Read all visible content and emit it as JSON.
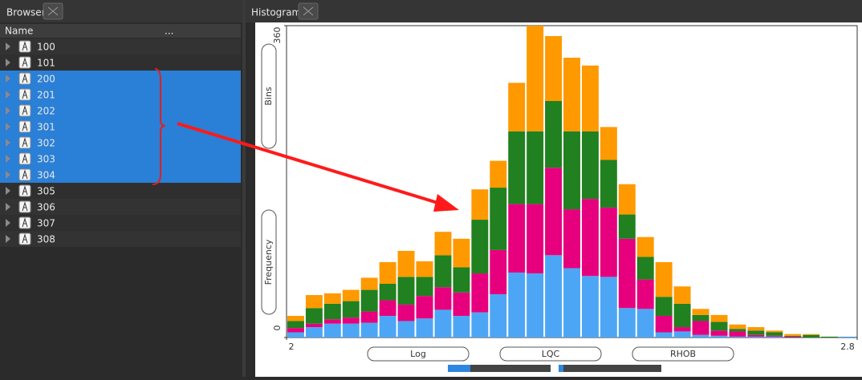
{
  "browser": {
    "title": "Browser",
    "column_headers": [
      "Name",
      "..."
    ],
    "items": [
      {
        "label": "100",
        "selected": false
      },
      {
        "label": "101",
        "selected": false
      },
      {
        "label": "200",
        "selected": true
      },
      {
        "label": "201",
        "selected": true
      },
      {
        "label": "202",
        "selected": true
      },
      {
        "label": "301",
        "selected": true
      },
      {
        "label": "302",
        "selected": true
      },
      {
        "label": "303",
        "selected": true
      },
      {
        "label": "304",
        "selected": true
      },
      {
        "label": "305",
        "selected": false
      },
      {
        "label": "306",
        "selected": false
      },
      {
        "label": "307",
        "selected": false
      },
      {
        "label": "308",
        "selected": false
      }
    ]
  },
  "histogram_panel": {
    "title": "Histogram",
    "y_axis_buttons": [
      "Bins",
      "Frequency"
    ],
    "x_axis_buttons": [
      "Log",
      "LQC",
      "RHOB"
    ]
  },
  "chart_data": {
    "type": "histogram",
    "stacked": true,
    "bins": [
      2,
      2.0258,
      2.0516,
      2.0774,
      2.1032,
      2.129,
      2.1548,
      2.1806,
      2.2065,
      2.2323,
      2.2581,
      2.2839,
      2.3097,
      2.3355,
      2.3613,
      2.3871,
      2.4129,
      2.4387,
      2.4645,
      2.4903,
      2.5161,
      2.5419,
      2.5677,
      2.5935,
      2.6194,
      2.6452,
      2.671,
      2.6968,
      2.7226,
      2.7484,
      2.7742,
      2.8
    ],
    "series": [
      {
        "color": "#4da6f5",
        "values": [
          6,
          12,
          16,
          16,
          17,
          25,
          19,
          22,
          32,
          25,
          29,
          50,
          75,
          74,
          95,
          80,
          71,
          70,
          34,
          33,
          6,
          7,
          3,
          2,
          1,
          1,
          1,
          0,
          0,
          0,
          1
        ]
      },
      {
        "color": "#e6007e",
        "values": [
          5,
          4,
          5,
          7,
          13,
          18,
          19,
          26,
          26,
          27,
          45,
          51,
          79,
          80,
          101,
          68,
          89,
          80,
          80,
          34,
          19,
          5,
          16,
          6,
          6,
          2,
          1,
          1,
          0,
          0,
          0
        ]
      },
      {
        "color": "#21801f",
        "values": [
          8,
          18,
          18,
          19,
          25,
          19,
          32,
          22,
          37,
          29,
          62,
          72,
          84,
          84,
          77,
          90,
          78,
          55,
          28,
          26,
          22,
          27,
          7,
          10,
          3,
          5,
          4,
          1,
          3,
          1,
          0
        ]
      },
      {
        "color": "#ff9900",
        "values": [
          6,
          15,
          12,
          13,
          14,
          25,
          30,
          18,
          27,
          33,
          35,
          31,
          56,
          122,
          75,
          85,
          76,
          38,
          35,
          23,
          40,
          20,
          7,
          8,
          5,
          4,
          2,
          2,
          1,
          0,
          0
        ]
      }
    ],
    "xlim": [
      2,
      2.8
    ],
    "ylim": [
      0,
      360
    ],
    "xticks": [
      2,
      2.8
    ],
    "yticks": [
      0,
      360
    ]
  }
}
